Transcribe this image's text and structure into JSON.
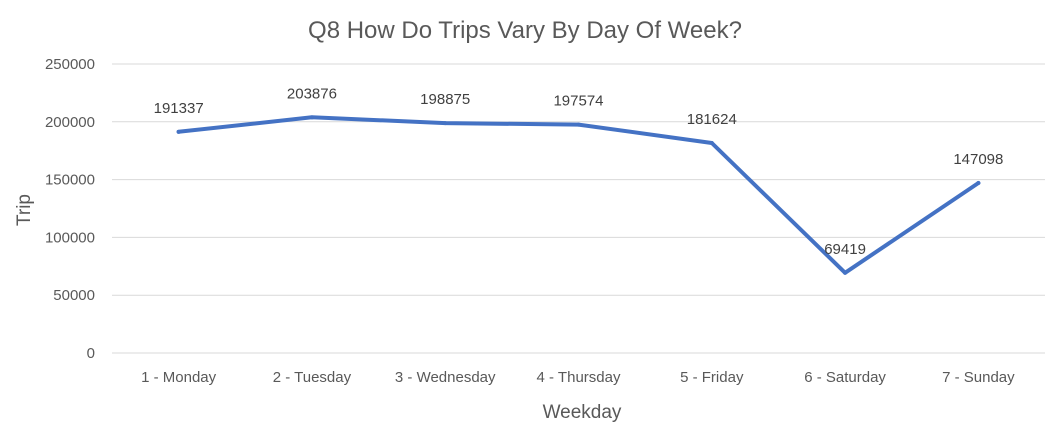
{
  "chart_data": {
    "type": "line",
    "title": "Q8 How Do Trips Vary By Day Of Week?",
    "xlabel": "Weekday",
    "ylabel": "Trip",
    "categories": [
      "1 - Monday",
      "2 - Tuesday",
      "3 - Wednesday",
      "4 - Thursday",
      "5 - Friday",
      "6 - Saturday",
      "7 - Sunday"
    ],
    "series": [
      {
        "values": [
          191337,
          203876,
          198875,
          197574,
          181624,
          69419,
          147098
        ],
        "color": "#4472c4"
      }
    ],
    "data_labels": [
      "191337",
      "203876",
      "198875",
      "197574",
      "181624",
      "69419",
      "147098"
    ],
    "yticks": [
      "0",
      "50000",
      "100000",
      "150000",
      "200000",
      "250000"
    ],
    "ylim": [
      0,
      250000
    ],
    "grid": true,
    "legend": "none"
  }
}
